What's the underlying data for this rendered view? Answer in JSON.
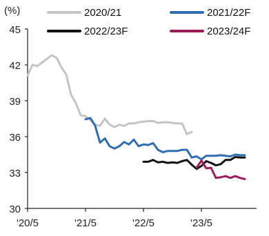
{
  "chart_data": {
    "type": "line",
    "unit": "(%)",
    "ylim": [
      30,
      45
    ],
    "y_ticks": [
      "30",
      "33",
      "36",
      "39",
      "42",
      "45"
    ],
    "x_ticks": [
      "'20/5",
      "'21/5",
      "'22/5",
      "'23/5"
    ],
    "grid": false,
    "legend_position": "top",
    "series": [
      {
        "name": "2020/21",
        "color": "#c4c4c4",
        "points": [
          [
            0,
            41.1
          ],
          [
            1,
            42.0
          ],
          [
            2,
            41.9
          ],
          [
            3,
            42.2
          ],
          [
            4,
            42.5
          ],
          [
            5,
            42.8
          ],
          [
            6,
            42.6
          ],
          [
            7,
            41.8
          ],
          [
            8,
            41.2
          ],
          [
            9,
            39.5
          ],
          [
            10,
            38.8
          ],
          [
            11,
            37.8
          ],
          [
            12,
            37.7
          ],
          [
            13,
            37.4
          ],
          [
            14,
            37.0
          ],
          [
            15,
            36.9
          ],
          [
            16,
            37.5
          ],
          [
            17,
            37.0
          ],
          [
            18,
            36.8
          ],
          [
            19,
            37.0
          ],
          [
            20,
            36.9
          ],
          [
            21,
            37.1
          ],
          [
            22,
            37.1
          ],
          [
            23,
            37.2
          ],
          [
            24,
            37.25
          ],
          [
            25,
            37.3
          ],
          [
            26,
            37.3
          ],
          [
            27,
            37.15
          ],
          [
            28,
            37.2
          ],
          [
            29,
            37.2
          ],
          [
            30,
            37.15
          ],
          [
            31,
            37.1
          ],
          [
            32,
            37.1
          ],
          [
            33,
            36.2
          ],
          [
            34,
            36.4
          ]
        ]
      },
      {
        "name": "2021/22F",
        "color": "#2e6db4",
        "points": [
          [
            12,
            37.45
          ],
          [
            13,
            37.55
          ],
          [
            14,
            36.9
          ],
          [
            15,
            35.5
          ],
          [
            16,
            35.85
          ],
          [
            17,
            35.2
          ],
          [
            18,
            35.0
          ],
          [
            19,
            35.2
          ],
          [
            20,
            35.55
          ],
          [
            21,
            35.35
          ],
          [
            22,
            35.75
          ],
          [
            23,
            35.2
          ],
          [
            24,
            35.35
          ],
          [
            25,
            35.3
          ],
          [
            26,
            35.45
          ],
          [
            27,
            34.9
          ],
          [
            28,
            34.7
          ],
          [
            29,
            34.8
          ],
          [
            30,
            34.8
          ],
          [
            31,
            34.8
          ],
          [
            32,
            34.9
          ],
          [
            33,
            34.9
          ],
          [
            34,
            34.25
          ],
          [
            35,
            34.35
          ],
          [
            36,
            34.1
          ],
          [
            37,
            34.4
          ],
          [
            38,
            34.4
          ],
          [
            39,
            34.4
          ],
          [
            40,
            34.45
          ],
          [
            41,
            34.4
          ],
          [
            42,
            34.35
          ],
          [
            43,
            34.5
          ],
          [
            44,
            34.45
          ],
          [
            45,
            34.45
          ]
        ]
      },
      {
        "name": "2022/23F",
        "color": "#111111",
        "points": [
          [
            24,
            33.9
          ],
          [
            25,
            33.9
          ],
          [
            26,
            34.05
          ],
          [
            27,
            33.85
          ],
          [
            28,
            33.9
          ],
          [
            29,
            33.8
          ],
          [
            30,
            33.85
          ],
          [
            31,
            33.8
          ],
          [
            32,
            33.95
          ],
          [
            33,
            34.05
          ],
          [
            34,
            33.65
          ],
          [
            35,
            33.3
          ],
          [
            36,
            33.55
          ],
          [
            37,
            33.95
          ],
          [
            38,
            33.8
          ],
          [
            39,
            33.6
          ],
          [
            40,
            33.7
          ],
          [
            41,
            34.05
          ],
          [
            42,
            34.05
          ],
          [
            43,
            34.3
          ],
          [
            44,
            34.25
          ],
          [
            45,
            34.25
          ]
        ]
      },
      {
        "name": "2023/24F",
        "color": "#9b1c5a",
        "points": [
          [
            35,
            33.4
          ],
          [
            36,
            34.0
          ],
          [
            37,
            33.35
          ],
          [
            38,
            33.4
          ],
          [
            39,
            32.55
          ],
          [
            40,
            32.6
          ],
          [
            41,
            32.7
          ],
          [
            42,
            32.55
          ],
          [
            43,
            32.7
          ],
          [
            44,
            32.55
          ],
          [
            45,
            32.45
          ]
        ]
      }
    ]
  }
}
